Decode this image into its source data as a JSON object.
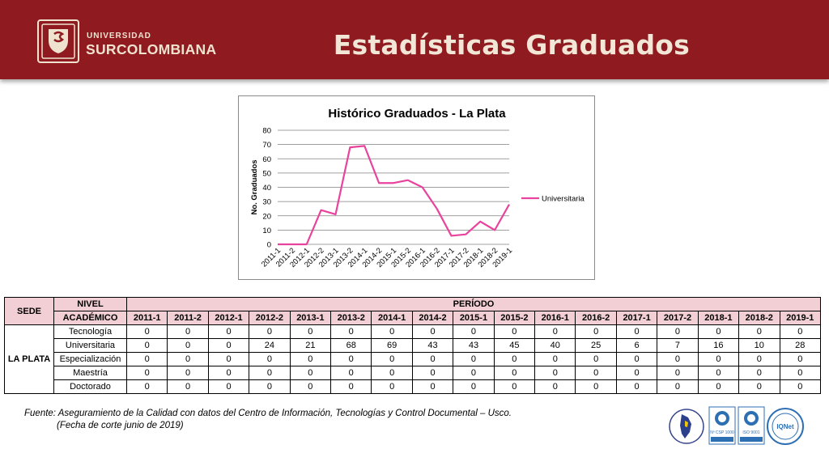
{
  "header": {
    "logo_top": "UNIVERSIDAD",
    "logo_bottom": "SURCOLOMBIANA",
    "title": "Estadísticas Graduados",
    "colors": {
      "banner": "#8f1b21",
      "text": "#f2e6d6"
    }
  },
  "chart_data": {
    "type": "line",
    "title": "Histórico Graduados - La Plata",
    "xlabel": "",
    "ylabel": "No. Graduados",
    "categories": [
      "2011-1",
      "2011-2",
      "2012-1",
      "2012-2",
      "2013-1",
      "2013-2",
      "2014-1",
      "2014-2",
      "2015-1",
      "2015-2",
      "2016-1",
      "2016-2",
      "2017-1",
      "2017-2",
      "2018-1",
      "2018-2",
      "2019-1"
    ],
    "series": [
      {
        "name": "Universitaria",
        "color": "#e8439d",
        "values": [
          0,
          0,
          0,
          24,
          21,
          68,
          69,
          43,
          43,
          45,
          40,
          25,
          6,
          7,
          16,
          10,
          28
        ]
      }
    ],
    "ylim": [
      0,
      80
    ],
    "yticks": [
      0,
      10,
      20,
      30,
      40,
      50,
      60,
      70,
      80
    ],
    "grid": true,
    "legend": "right"
  },
  "table": {
    "header_sede": "SEDE",
    "header_nivel_1": "NIVEL",
    "header_nivel_2": "ACADÉMICO",
    "header_periodo": "PERÍODO",
    "periods": [
      "2011-1",
      "2011-2",
      "2012-1",
      "2012-2",
      "2013-1",
      "2013-2",
      "2014-1",
      "2014-2",
      "2015-1",
      "2015-2",
      "2016-1",
      "2016-2",
      "2017-1",
      "2017-2",
      "2018-1",
      "2018-2",
      "2019-1"
    ],
    "sede": "LA PLATA",
    "rows": [
      {
        "nivel": "Tecnología",
        "values": [
          0,
          0,
          0,
          0,
          0,
          0,
          0,
          0,
          0,
          0,
          0,
          0,
          0,
          0,
          0,
          0,
          0
        ]
      },
      {
        "nivel": "Universitaria",
        "values": [
          0,
          0,
          0,
          24,
          21,
          68,
          69,
          43,
          43,
          45,
          40,
          25,
          6,
          7,
          16,
          10,
          28
        ]
      },
      {
        "nivel": "Especialización",
        "values": [
          0,
          0,
          0,
          0,
          0,
          0,
          0,
          0,
          0,
          0,
          0,
          0,
          0,
          0,
          0,
          0,
          0
        ]
      },
      {
        "nivel": "Maestría",
        "values": [
          0,
          0,
          0,
          0,
          0,
          0,
          0,
          0,
          0,
          0,
          0,
          0,
          0,
          0,
          0,
          0,
          0
        ]
      },
      {
        "nivel": "Doctorado",
        "values": [
          0,
          0,
          0,
          0,
          0,
          0,
          0,
          0,
          0,
          0,
          0,
          0,
          0,
          0,
          0,
          0,
          0
        ]
      }
    ]
  },
  "footer": {
    "source": "Fuente: Aseguramiento de la Calidad con datos del Centro de Información, Tecnologías y Control Documental – Usco.",
    "cutoff": "(Fecha de corte junio de 2019)"
  },
  "certifications": {
    "labels": [
      "Nº CSP 1000",
      "ISO 9001",
      "IQNet"
    ]
  }
}
